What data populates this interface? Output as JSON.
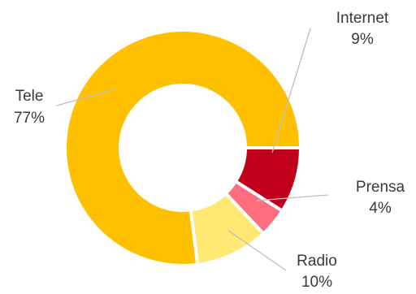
{
  "chart_data": {
    "type": "pie",
    "donut": true,
    "categories": [
      "Internet",
      "Prensa",
      "Radio",
      "Tele"
    ],
    "values": [
      9,
      4,
      10,
      77
    ],
    "value_labels": [
      "9%",
      "4%",
      "10%",
      "77%"
    ],
    "colors": [
      "#C0001A",
      "#FF6E7F",
      "#FFE974",
      "#FFC000"
    ],
    "legend": "none",
    "title": ""
  }
}
